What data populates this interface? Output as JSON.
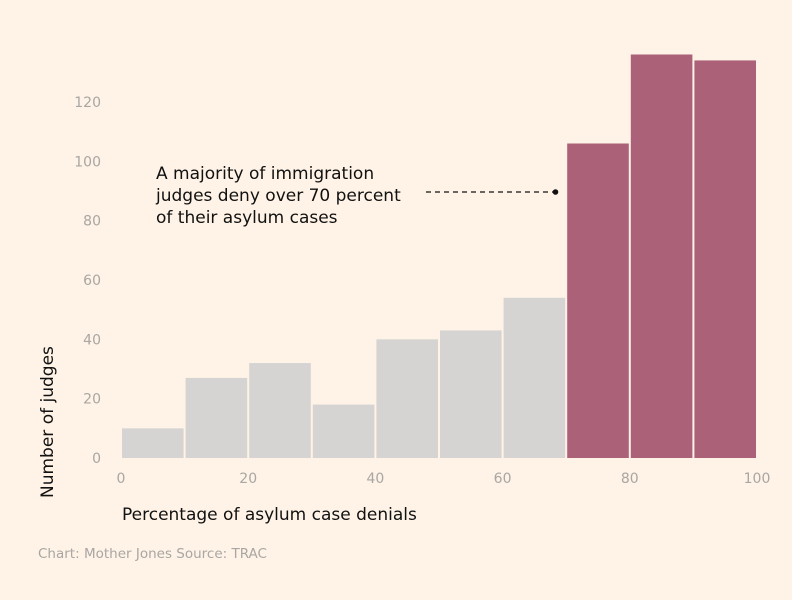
{
  "chart_data": {
    "type": "bar",
    "subtype": "histogram",
    "title": "",
    "xlabel": "Percentage of asylum case denials",
    "ylabel": "Number of judges",
    "xlim": [
      0,
      100
    ],
    "ylim": [
      0,
      138
    ],
    "bin_width": 10,
    "bins": [
      {
        "from": 0,
        "to": 10,
        "value": 10
      },
      {
        "from": 10,
        "to": 20,
        "value": 27
      },
      {
        "from": 20,
        "to": 30,
        "value": 32
      },
      {
        "from": 30,
        "to": 40,
        "value": 18
      },
      {
        "from": 40,
        "to": 50,
        "value": 40
      },
      {
        "from": 50,
        "to": 60,
        "value": 43
      },
      {
        "from": 60,
        "to": 70,
        "value": 54
      },
      {
        "from": 70,
        "to": 80,
        "value": 106
      },
      {
        "from": 80,
        "to": 90,
        "value": 136
      },
      {
        "from": 90,
        "to": 100,
        "value": 134
      }
    ],
    "highlight_from": 70,
    "colors": {
      "default": "#d5d4d2",
      "highlight": "#ab6279",
      "background": "#fef3e6"
    },
    "xticks": [
      "0",
      "20",
      "40",
      "60",
      "80",
      "100"
    ],
    "yticks": [
      "0",
      "20",
      "40",
      "60",
      "80",
      "100",
      "120"
    ],
    "grid": false,
    "annotation": {
      "lines": [
        "A majority of immigration",
        "judges deny over 70 percent",
        "of their asylum cases"
      ],
      "points_to_x": 68,
      "points_to_y": 90
    },
    "credit": "Chart: Mother Jones Source: TRAC"
  }
}
